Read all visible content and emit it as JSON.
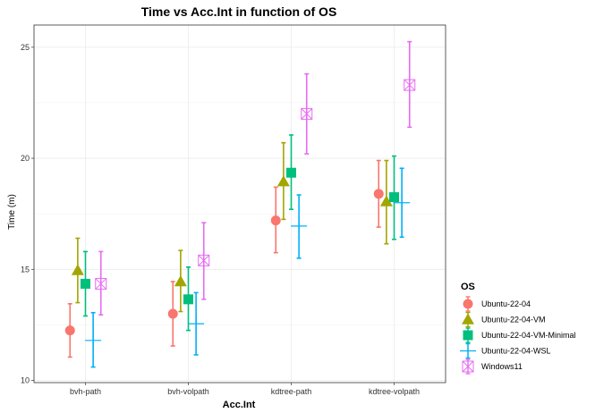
{
  "chart_data": {
    "type": "scatter",
    "title": "Time vs Acc.Int in function of OS",
    "xlabel": "Acc.Int",
    "ylabel": "Time (m)",
    "categories": [
      "bvh-path",
      "bvh-volpath",
      "kdtree-path",
      "kdtree-volpath"
    ],
    "ylim": [
      9.9,
      26.0
    ],
    "yticks": [
      10,
      15,
      20,
      25
    ],
    "grid": true,
    "legend_title": "OS",
    "legend_position": "right",
    "series": [
      {
        "name": "Ubuntu-22-04",
        "color": "#F8766D",
        "shape": "circle",
        "values": [
          12.25,
          13.0,
          17.2,
          18.4
        ],
        "err_low": [
          11.05,
          11.55,
          15.75,
          16.9
        ],
        "err_high": [
          13.45,
          14.45,
          18.7,
          19.9
        ]
      },
      {
        "name": "Ubuntu-22-04-VM",
        "color": "#A3A500",
        "shape": "triangle",
        "values": [
          14.95,
          14.45,
          18.95,
          18.05
        ],
        "err_low": [
          13.5,
          13.1,
          17.25,
          16.15
        ],
        "err_high": [
          16.4,
          15.85,
          20.7,
          19.9
        ]
      },
      {
        "name": "Ubuntu-22-04-VM-Minimal",
        "color": "#00BF7D",
        "shape": "square",
        "values": [
          14.35,
          13.65,
          19.35,
          18.25
        ],
        "err_low": [
          12.9,
          12.25,
          17.7,
          16.35
        ],
        "err_high": [
          15.8,
          15.1,
          21.05,
          20.1
        ]
      },
      {
        "name": "Ubuntu-22-04-WSL",
        "color": "#00B0F6",
        "shape": "plus",
        "values": [
          11.8,
          12.55,
          16.95,
          18.0
        ],
        "err_low": [
          10.6,
          11.15,
          15.5,
          16.45
        ],
        "err_high": [
          13.05,
          13.95,
          18.35,
          19.55
        ]
      },
      {
        "name": "Windows11",
        "color": "#E76BF3",
        "shape": "boxed-x",
        "values": [
          14.35,
          15.4,
          22.0,
          23.3
        ],
        "err_low": [
          12.95,
          13.65,
          20.2,
          21.4
        ],
        "err_high": [
          15.8,
          17.1,
          23.8,
          25.25
        ]
      }
    ]
  }
}
